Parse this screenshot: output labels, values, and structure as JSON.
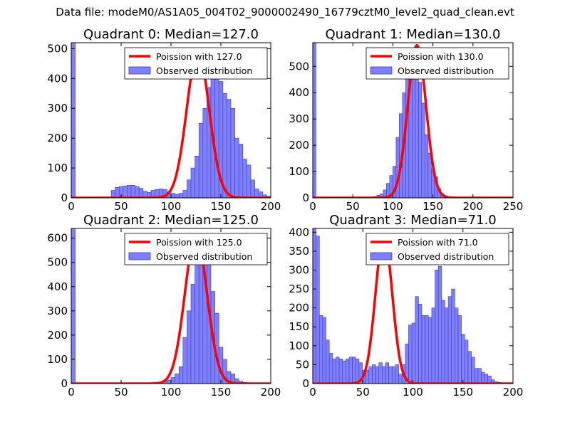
{
  "figure": {
    "suptitle": "Data file: modeM0/AS1A05_004T02_9000002490_16779cztM0_level2_quad_clean.evt",
    "bar_color": "#8080ff",
    "bar_edge": "#3a3ab0",
    "line_color": "#ff0000"
  },
  "chart_data": [
    {
      "type": "bar",
      "title": "Quadrant 0: Median=127.0",
      "xlim": [
        0,
        200
      ],
      "ylim": [
        0,
        520
      ],
      "xticks": [
        0,
        50,
        100,
        150,
        200
      ],
      "yticks": [
        0,
        100,
        200,
        300,
        400,
        500
      ],
      "bin_width": 4,
      "bins_start": 0,
      "counts": [
        520,
        0,
        0,
        0,
        0,
        0,
        0,
        0,
        0,
        0,
        25,
        35,
        38,
        40,
        42,
        42,
        38,
        32,
        22,
        18,
        25,
        28,
        30,
        28,
        20,
        15,
        12,
        15,
        25,
        60,
        100,
        140,
        250,
        300,
        370,
        400,
        420,
        390,
        350,
        330,
        300,
        200,
        180,
        130,
        110,
        60,
        30,
        20,
        10,
        5
      ],
      "legend": {
        "line": "Poission with 127.0",
        "bars": "Observed distribution"
      },
      "poisson_mean": 127,
      "poisson_peak": 490
    },
    {
      "type": "bar",
      "title": "Quadrant 1: Median=130.0",
      "xlim": [
        0,
        250
      ],
      "ylim": [
        0,
        590
      ],
      "xticks": [
        0,
        50,
        100,
        150,
        200,
        250
      ],
      "yticks": [
        0,
        100,
        200,
        300,
        400,
        500
      ],
      "bin_width": 4,
      "bins_start": 0,
      "counts": [
        590,
        0,
        0,
        0,
        0,
        0,
        0,
        0,
        0,
        0,
        0,
        0,
        0,
        0,
        0,
        0,
        0,
        0,
        0,
        5,
        10,
        15,
        30,
        55,
        85,
        120,
        230,
        320,
        400,
        470,
        530,
        550,
        480,
        440,
        360,
        240,
        170,
        110,
        80,
        35,
        15,
        8,
        5,
        3
      ],
      "legend": {
        "line": "Poission with 130.0",
        "bars": "Observed distribution"
      },
      "poisson_mean": 130,
      "poisson_peak": 580
    },
    {
      "type": "bar",
      "title": "Quadrant 2: Median=125.0",
      "xlim": [
        0,
        200
      ],
      "ylim": [
        0,
        640
      ],
      "xticks": [
        0,
        50,
        100,
        150,
        200
      ],
      "yticks": [
        0,
        100,
        200,
        300,
        400,
        500,
        600
      ],
      "bin_width": 4,
      "bins_start": 0,
      "counts": [
        640,
        0,
        0,
        0,
        0,
        0,
        0,
        0,
        0,
        0,
        0,
        0,
        0,
        0,
        0,
        0,
        0,
        0,
        0,
        0,
        0,
        0,
        0,
        8,
        15,
        25,
        40,
        70,
        190,
        300,
        410,
        540,
        590,
        560,
        500,
        380,
        290,
        150,
        100,
        50,
        40,
        20,
        10,
        5,
        3
      ],
      "legend": {
        "line": "Poission with 125.0",
        "bars": "Observed distribution"
      },
      "poisson_mean": 125,
      "poisson_peak": 610
    },
    {
      "type": "bar",
      "title": "Quadrant 3: Median=71.0",
      "xlim": [
        0,
        200
      ],
      "ylim": [
        0,
        410
      ],
      "xticks": [
        0,
        50,
        100,
        150,
        200
      ],
      "yticks": [
        0,
        50,
        100,
        150,
        200,
        250,
        300,
        350,
        400
      ],
      "bin_width": 4,
      "bins_start": 0,
      "counts": [
        410,
        390,
        180,
        175,
        115,
        80,
        65,
        70,
        65,
        60,
        65,
        70,
        70,
        65,
        55,
        35,
        35,
        45,
        50,
        45,
        55,
        45,
        55,
        45,
        45,
        50,
        25,
        50,
        105,
        155,
        160,
        230,
        210,
        180,
        180,
        175,
        200,
        300,
        310,
        220,
        200,
        230,
        250,
        200,
        180,
        130,
        115,
        85,
        70,
        40,
        40,
        30,
        25,
        20,
        10,
        5,
        3
      ],
      "bin_width_override": 3.3,
      "legend": {
        "line": "Poission with 71.0",
        "bars": "Observed distribution"
      },
      "poisson_mean": 71,
      "poisson_peak": 390
    }
  ]
}
